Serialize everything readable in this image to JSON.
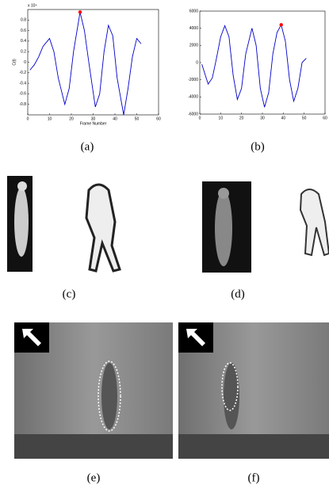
{
  "chart_data": [
    {
      "type": "line",
      "x_label": "Frame Number",
      "y_label": "C(t)",
      "scale_label": "x 10⁴",
      "x": [
        1,
        3,
        5,
        7,
        10,
        12,
        14,
        17,
        19,
        21,
        24,
        26,
        28,
        31,
        33,
        35,
        37,
        39,
        41,
        44,
        46,
        48,
        50,
        52
      ],
      "values": [
        -0.15,
        -0.05,
        0.1,
        0.3,
        0.45,
        0.2,
        -0.3,
        -0.8,
        -0.5,
        0.2,
        0.95,
        0.6,
        0.0,
        -0.85,
        -0.6,
        0.2,
        0.7,
        0.5,
        -0.3,
        -1.0,
        -0.5,
        0.1,
        0.45,
        0.35
      ],
      "color": "#0000cc",
      "marker": {
        "x": 24,
        "y": 0.95,
        "color": "#ff0000"
      },
      "xlim": [
        0,
        60
      ],
      "xticks": [
        0,
        10,
        20,
        30,
        40,
        50,
        60
      ],
      "ylim": [
        -1,
        1
      ],
      "yticks": [
        -0.8,
        -0.6,
        -0.4,
        -0.2,
        0,
        0.2,
        0.4,
        0.6,
        0.8
      ]
    },
    {
      "type": "line",
      "x": [
        1,
        4,
        6,
        8,
        10,
        12,
        14,
        16,
        18,
        20,
        22,
        25,
        27,
        29,
        31,
        33,
        35,
        37,
        39,
        41,
        43,
        45,
        47,
        49,
        51
      ],
      "values": [
        -200,
        -2500,
        -1800,
        500,
        3000,
        4300,
        3000,
        -1500,
        -4300,
        -3000,
        1000,
        4000,
        2000,
        -3000,
        -5200,
        -3500,
        1000,
        3500,
        4400,
        2500,
        -2000,
        -4500,
        -3000,
        0,
        500
      ],
      "color": "#0000cc",
      "marker": {
        "x": 39,
        "y": 4400,
        "color": "#ff0000"
      },
      "xlim": [
        0,
        60
      ],
      "xticks": [
        0,
        10,
        20,
        30,
        40,
        50,
        60
      ],
      "ylim": [
        -6000,
        6000
      ],
      "yticks": [
        -6000,
        -4000,
        -2000,
        0,
        2000,
        4000,
        6000
      ]
    }
  ],
  "captions": [
    "(a)",
    "(b)",
    "(c)",
    "(d)",
    "(e)",
    "(f)"
  ]
}
